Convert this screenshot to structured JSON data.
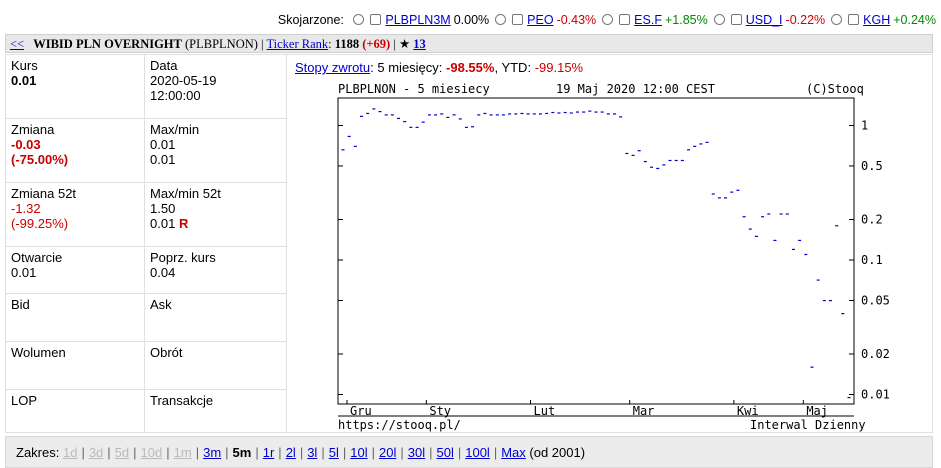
{
  "correlated": {
    "label": "Skojarzone:",
    "items": [
      {
        "symbol": "PLBPLN3M",
        "change": "0.00%",
        "tone": "neutral"
      },
      {
        "symbol": "PEO",
        "change": "-0.43%",
        "tone": "neg"
      },
      {
        "symbol": "ES.F",
        "change": "+1.85%",
        "tone": "pos"
      },
      {
        "symbol": "USD_I",
        "change": "-0.22%",
        "tone": "neg"
      },
      {
        "symbol": "KGH",
        "change": "+0.24%",
        "tone": "pos"
      }
    ]
  },
  "header": {
    "back": "<<",
    "name": "WIBID PLN OVERNIGHT",
    "ticker": "(PLBPLNON)",
    "sep": "|",
    "ticker_rank_label": "Ticker Rank",
    "rank_value": "1188",
    "rank_change": "(+69)",
    "star": "★",
    "star_count": "13"
  },
  "stats": {
    "kurs_label": "Kurs",
    "kurs_value": "0.01",
    "data_label": "Data",
    "data_date": "2020-05-19",
    "data_time": "12:00:00",
    "zmiana_label": "Zmiana",
    "zmiana_abs": "-0.03",
    "zmiana_pct": "(-75.00%)",
    "maxmin_label": "Max/min",
    "max": "0.01",
    "min": "0.01",
    "zmiana52_label": "Zmiana 52t",
    "zmiana52_abs": "-1.32",
    "zmiana52_pct": "(-99.25%)",
    "maxmin52_label": "Max/min 52t",
    "max52": "1.50",
    "min52": "0.01",
    "min52_flag": "R",
    "otwarcie_label": "Otwarcie",
    "otwarcie_value": "0.01",
    "poprz_label": "Poprz. kurs",
    "poprz_value": "0.04",
    "bid_label": "Bid",
    "ask_label": "Ask",
    "wolumen_label": "Wolumen",
    "obrot_label": "Obrót",
    "lop_label": "LOP",
    "transakcje_label": "Transakcje"
  },
  "returns": {
    "link": "Stopy zwrotu",
    "period_label": ": 5 miesięcy:",
    "period_value": "-98.55%",
    "ytd_label": ", YTD:",
    "ytd_value": "-99.15%"
  },
  "chart_data": {
    "type": "scatter",
    "title": "PLBPLNON - 5 miesiecy",
    "date": "19 Maj 2020 12:00 CEST",
    "copyright": "(C)Stooq",
    "footer_left": "https://stooq.pl/",
    "footer_right": "Interwal Dzienny",
    "yscale": "log",
    "ylim": [
      0.0085,
      1.6
    ],
    "yticks": [
      1,
      0.5,
      0.2,
      0.1,
      0.05,
      0.02,
      0.01
    ],
    "ytick_labels": [
      "1",
      "0.5",
      "0.2",
      "0.1",
      "0.05",
      "0.02",
      "0.01"
    ],
    "x_labels": [
      "Gru",
      "Sty",
      "Lut",
      "Mar",
      "Kwi",
      "Maj"
    ],
    "values": [
      0.66,
      0.83,
      0.7,
      1.17,
      1.23,
      1.33,
      1.27,
      1.2,
      1.2,
      1.13,
      1.07,
      0.97,
      0.97,
      1.06,
      1.2,
      1.2,
      1.22,
      1.15,
      1.2,
      1.12,
      0.97,
      0.98,
      1.2,
      1.23,
      1.2,
      1.2,
      1.2,
      1.22,
      1.22,
      1.23,
      1.22,
      1.22,
      1.22,
      1.23,
      1.25,
      1.24,
      1.25,
      1.24,
      1.26,
      1.26,
      1.28,
      1.26,
      1.26,
      1.22,
      1.22,
      1.16,
      0.62,
      0.6,
      0.65,
      0.54,
      0.49,
      0.48,
      0.51,
      0.55,
      0.55,
      0.55,
      0.66,
      0.7,
      0.73,
      0.75,
      0.31,
      0.29,
      0.29,
      0.32,
      0.33,
      0.21,
      0.17,
      0.15,
      0.21,
      0.22,
      0.14,
      0.22,
      0.22,
      0.12,
      0.14,
      0.11,
      0.016,
      0.071,
      0.05,
      0.05,
      0.18,
      0.04,
      0.0095
    ]
  },
  "range": {
    "label": "Zakres:",
    "items": [
      {
        "label": "1d",
        "state": "disabled"
      },
      {
        "label": "3d",
        "state": "disabled"
      },
      {
        "label": "5d",
        "state": "disabled"
      },
      {
        "label": "10d",
        "state": "disabled"
      },
      {
        "label": "1m",
        "state": "disabled"
      },
      {
        "label": "3m",
        "state": "link"
      },
      {
        "label": "5m",
        "state": "current"
      },
      {
        "label": "1r",
        "state": "link"
      },
      {
        "label": "2l",
        "state": "link"
      },
      {
        "label": "3l",
        "state": "link"
      },
      {
        "label": "5l",
        "state": "link"
      },
      {
        "label": "10l",
        "state": "link"
      },
      {
        "label": "20l",
        "state": "link"
      },
      {
        "label": "30l",
        "state": "link"
      },
      {
        "label": "50l",
        "state": "link"
      },
      {
        "label": "100l",
        "state": "link"
      },
      {
        "label": "Max",
        "state": "link"
      }
    ],
    "suffix": "(od 2001)"
  },
  "colors": {
    "series": "#0000cc",
    "negative": "#cc0000",
    "positive": "#008800",
    "link": "#0000cc"
  }
}
